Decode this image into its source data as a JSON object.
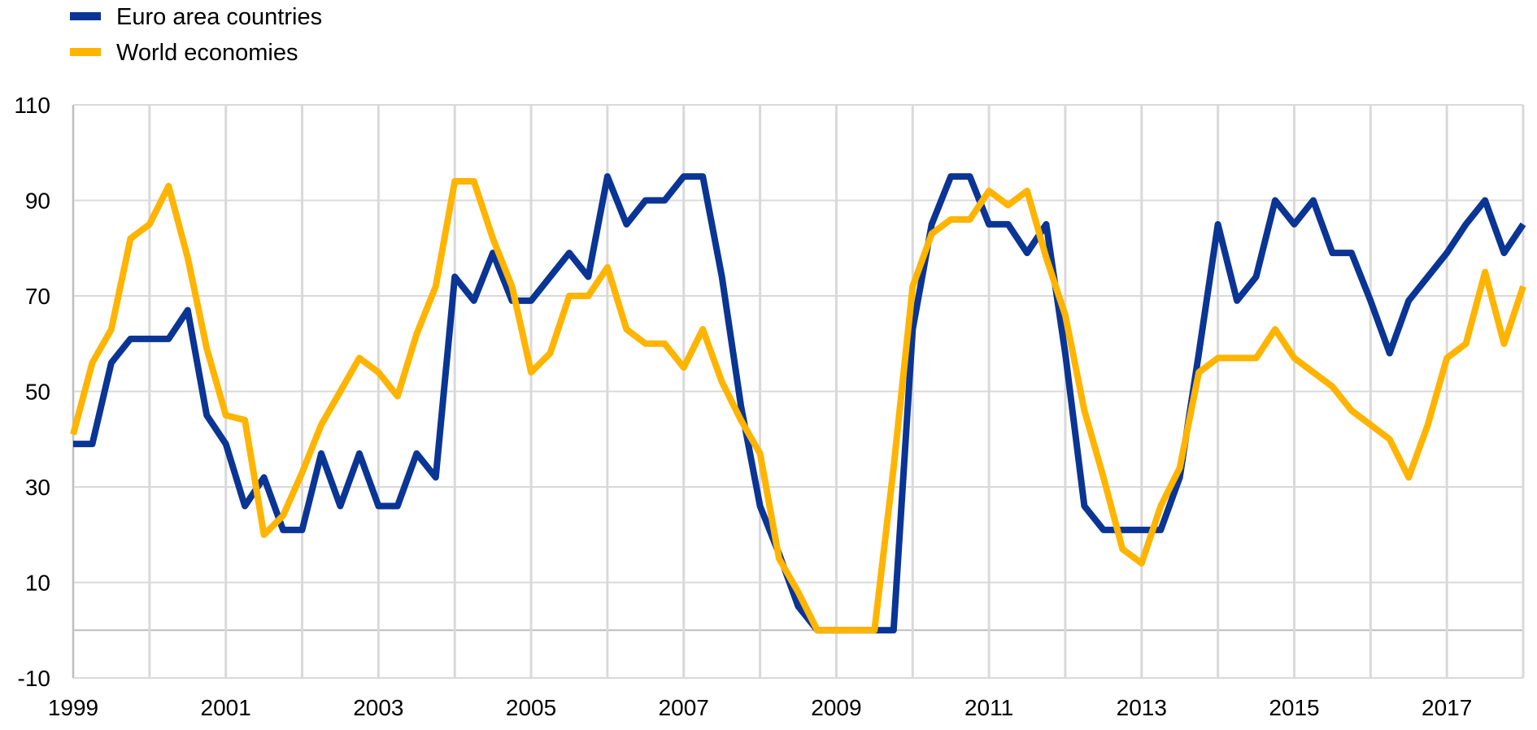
{
  "chart_data": {
    "type": "line",
    "title": "",
    "xlabel": "",
    "ylabel": "",
    "ylim": [
      -10,
      110
    ],
    "xlim": [
      1999,
      2018
    ],
    "yticks": [
      -10,
      10,
      30,
      50,
      70,
      90,
      110
    ],
    "xtick_labels": [
      "1999",
      "2001",
      "2003",
      "2005",
      "2007",
      "2009",
      "2011",
      "2013",
      "2015",
      "2017"
    ],
    "xtick_values": [
      1999,
      2001,
      2003,
      2005,
      2007,
      2009,
      2011,
      2013,
      2015,
      2017
    ],
    "grid": "vertical lines at each year, horizontal lines at each y tick",
    "legend_position": "top-left",
    "series": [
      {
        "name": "Euro area countries",
        "color": "#0a3595",
        "x": [
          1999.0,
          1999.25,
          1999.5,
          1999.75,
          2000.0,
          2000.25,
          2000.5,
          2000.75,
          2001.0,
          2001.25,
          2001.5,
          2001.75,
          2002.0,
          2002.25,
          2002.5,
          2002.75,
          2003.0,
          2003.25,
          2003.5,
          2003.75,
          2004.0,
          2004.25,
          2004.5,
          2004.75,
          2005.0,
          2005.25,
          2005.5,
          2005.75,
          2006.0,
          2006.25,
          2006.5,
          2006.75,
          2007.0,
          2007.25,
          2007.5,
          2007.75,
          2008.0,
          2008.25,
          2008.5,
          2008.75,
          2009.0,
          2009.25,
          2009.5,
          2009.75,
          2010.0,
          2010.25,
          2010.5,
          2010.75,
          2011.0,
          2011.25,
          2011.5,
          2011.75,
          2012.0,
          2012.25,
          2012.5,
          2012.75,
          2013.0,
          2013.25,
          2013.5,
          2013.75,
          2014.0,
          2014.25,
          2014.5,
          2014.75,
          2015.0,
          2015.25,
          2015.5,
          2015.75,
          2016.0,
          2016.25,
          2016.5,
          2016.75,
          2017.0,
          2017.25,
          2017.5,
          2017.75,
          2018.0
        ],
        "values": [
          39,
          39,
          56,
          61,
          61,
          61,
          67,
          45,
          39,
          26,
          32,
          21,
          21,
          37,
          26,
          37,
          26,
          26,
          37,
          32,
          74,
          69,
          79,
          69,
          69,
          74,
          79,
          74,
          95,
          85,
          90,
          90,
          95,
          95,
          74,
          47,
          26,
          16,
          5,
          0,
          0,
          0,
          0,
          0,
          63,
          85,
          95,
          95,
          85,
          85,
          79,
          85,
          58,
          26,
          21,
          21,
          21,
          21,
          32,
          58,
          85,
          69,
          74,
          90,
          85,
          90,
          79,
          79,
          69,
          58,
          69,
          74,
          79,
          85,
          90,
          79,
          85
        ]
      },
      {
        "name": "World economies",
        "color": "#ffb400",
        "x": [
          1999.0,
          1999.25,
          1999.5,
          1999.75,
          2000.0,
          2000.25,
          2000.5,
          2000.75,
          2001.0,
          2001.25,
          2001.5,
          2001.75,
          2002.0,
          2002.25,
          2002.5,
          2002.75,
          2003.0,
          2003.25,
          2003.5,
          2003.75,
          2004.0,
          2004.25,
          2004.5,
          2004.75,
          2005.0,
          2005.25,
          2005.5,
          2005.75,
          2006.0,
          2006.25,
          2006.5,
          2006.75,
          2007.0,
          2007.25,
          2007.5,
          2007.75,
          2008.0,
          2008.25,
          2008.5,
          2008.75,
          2009.0,
          2009.25,
          2009.5,
          2009.75,
          2010.0,
          2010.25,
          2010.5,
          2010.75,
          2011.0,
          2011.25,
          2011.5,
          2011.75,
          2012.0,
          2012.25,
          2012.5,
          2012.75,
          2013.0,
          2013.25,
          2013.5,
          2013.75,
          2014.0,
          2014.25,
          2014.5,
          2014.75,
          2015.0,
          2015.25,
          2015.5,
          2015.75,
          2016.0,
          2016.25,
          2016.5,
          2016.75,
          2017.0,
          2017.25,
          2017.5,
          2017.75,
          2018.0
        ],
        "values": [
          41,
          56,
          63,
          82,
          85,
          93,
          78,
          59,
          45,
          44,
          20,
          24,
          33,
          43,
          50,
          57,
          54,
          49,
          62,
          72,
          94,
          94,
          82,
          72,
          54,
          58,
          70,
          70,
          76,
          63,
          60,
          60,
          55,
          63,
          52,
          44,
          37,
          15,
          8,
          0,
          0,
          0,
          0,
          34,
          72,
          83,
          86,
          86,
          92,
          89,
          92,
          78,
          66,
          46,
          32,
          17,
          14,
          26,
          34,
          54,
          57,
          57,
          57,
          63,
          57,
          54,
          51,
          46,
          43,
          40,
          32,
          43,
          57,
          60,
          75,
          60,
          72
        ]
      }
    ]
  }
}
